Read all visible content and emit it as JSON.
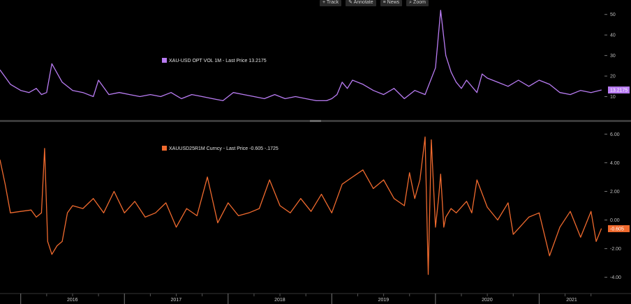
{
  "toolbar": {
    "items": [
      {
        "icon": "plus-icon",
        "glyph": "+",
        "label": "Track"
      },
      {
        "icon": "pencil-icon",
        "glyph": "✎",
        "label": "Annotate"
      },
      {
        "icon": "news-icon",
        "glyph": "≡",
        "label": "News"
      },
      {
        "icon": "magnifier-icon",
        "glyph": "⌕",
        "label": "Zoom"
      }
    ]
  },
  "chart_data": [
    {
      "type": "line",
      "legend": "XAU-USD OPT VOL 1M  -  Last Price 13.2175",
      "last_label": "13.2175",
      "last_value": 13.2175,
      "color": "#b97cf3",
      "ylim": [
        0,
        55
      ],
      "yticks": [
        10,
        20,
        30,
        40,
        50
      ],
      "ytick_labels": [
        "10",
        "20",
        "30",
        "40",
        "50"
      ],
      "x_range": [
        2015.8,
        2021.63
      ],
      "x": [
        2015.8,
        2015.9,
        2016.0,
        2016.08,
        2016.15,
        2016.2,
        2016.25,
        2016.3,
        2016.4,
        2016.5,
        2016.6,
        2016.7,
        2016.75,
        2016.85,
        2016.95,
        2017.05,
        2017.15,
        2017.25,
        2017.35,
        2017.45,
        2017.55,
        2017.65,
        2017.75,
        2017.85,
        2017.95,
        2018.05,
        2018.15,
        2018.25,
        2018.35,
        2018.45,
        2018.55,
        2018.65,
        2018.75,
        2018.85,
        2018.95,
        2019.0,
        2019.05,
        2019.1,
        2019.15,
        2019.2,
        2019.3,
        2019.4,
        2019.5,
        2019.6,
        2019.7,
        2019.8,
        2019.9,
        2020.0,
        2020.05,
        2020.1,
        2020.15,
        2020.17,
        2020.2,
        2020.25,
        2020.3,
        2020.4,
        2020.45,
        2020.5,
        2020.6,
        2020.7,
        2020.8,
        2020.9,
        2021.0,
        2021.1,
        2021.2,
        2021.3,
        2021.4,
        2021.5,
        2021.6
      ],
      "y": [
        23,
        16,
        13,
        12,
        14,
        11,
        12,
        26,
        17,
        13,
        12,
        10,
        18,
        11,
        12,
        11,
        10,
        11,
        10,
        12,
        9,
        11,
        10,
        9,
        8,
        12,
        11,
        10,
        9,
        11,
        9,
        10,
        9,
        8,
        8,
        9,
        11,
        17,
        14,
        18,
        16,
        13,
        11,
        14,
        9,
        13,
        11,
        24,
        52,
        30,
        22,
        20,
        17,
        14,
        18,
        12,
        21,
        19,
        17,
        15,
        18,
        15,
        18,
        16,
        12,
        11,
        13,
        12,
        13.2175
      ]
    },
    {
      "type": "line",
      "legend": "XAUUSD25R1M Curncy  -  Last Price -0.605   -.1725",
      "last_label": "-0.605",
      "last_value": -0.605,
      "color": "#f06a2e",
      "ylim": [
        -4.6,
        6.6
      ],
      "yticks": [
        -4,
        -2,
        0,
        2,
        4,
        6
      ],
      "ytick_labels": [
        "-4.00",
        "-2.00",
        "0.00",
        "2.00",
        "4.00",
        "6.00"
      ],
      "x_range": [
        2015.8,
        2021.63
      ],
      "x": [
        2015.8,
        2015.85,
        2015.9,
        2016.0,
        2016.1,
        2016.15,
        2016.2,
        2016.23,
        2016.26,
        2016.3,
        2016.35,
        2016.4,
        2016.45,
        2016.5,
        2016.6,
        2016.7,
        2016.8,
        2016.9,
        2017.0,
        2017.1,
        2017.2,
        2017.3,
        2017.4,
        2017.5,
        2017.6,
        2017.7,
        2017.8,
        2017.9,
        2018.0,
        2018.1,
        2018.2,
        2018.3,
        2018.4,
        2018.5,
        2018.6,
        2018.7,
        2018.8,
        2018.9,
        2019.0,
        2019.1,
        2019.2,
        2019.3,
        2019.4,
        2019.5,
        2019.6,
        2019.7,
        2019.75,
        2019.8,
        2019.85,
        2019.9,
        2019.93,
        2019.96,
        2020.0,
        2020.03,
        2020.05,
        2020.08,
        2020.1,
        2020.15,
        2020.2,
        2020.3,
        2020.35,
        2020.4,
        2020.5,
        2020.6,
        2020.7,
        2020.75,
        2020.8,
        2020.9,
        2021.0,
        2021.1,
        2021.2,
        2021.3,
        2021.4,
        2021.5,
        2021.55,
        2021.6
      ],
      "y": [
        4.2,
        2.5,
        0.5,
        0.6,
        0.7,
        0.2,
        0.5,
        5.0,
        -1.5,
        -2.4,
        -1.8,
        -1.5,
        0.5,
        1.0,
        0.8,
        1.5,
        0.5,
        2.0,
        0.5,
        1.3,
        0.2,
        0.5,
        1.2,
        -0.5,
        0.8,
        0.3,
        3.0,
        -0.2,
        1.2,
        0.3,
        0.5,
        0.8,
        2.8,
        1.0,
        0.5,
        1.5,
        0.6,
        1.8,
        0.5,
        2.5,
        3.0,
        3.5,
        2.2,
        2.8,
        1.5,
        1.0,
        3.3,
        1.5,
        2.8,
        5.8,
        -3.8,
        5.6,
        -0.5,
        1.5,
        3.2,
        -0.5,
        0.2,
        0.8,
        0.5,
        1.3,
        0.5,
        2.8,
        0.9,
        0.0,
        1.2,
        -1.0,
        -0.6,
        0.2,
        0.5,
        -2.5,
        -0.5,
        0.6,
        -1.2,
        0.6,
        -1.5,
        -0.605
      ]
    }
  ],
  "x_axis": {
    "years": [
      {
        "label": "2016",
        "x": 2016.0
      },
      {
        "label": "2017",
        "x": 2017.0
      },
      {
        "label": "2018",
        "x": 2018.0
      },
      {
        "label": "2019",
        "x": 2019.0
      },
      {
        "label": "2020",
        "x": 2020.0
      },
      {
        "label": "2021",
        "x": 2021.0
      }
    ],
    "month_markers": [
      2016.25,
      2016.5,
      2016.75,
      2017.25,
      2017.5,
      2017.75,
      2018.25,
      2018.5,
      2018.75,
      2019.25,
      2019.5,
      2019.75,
      2020.25,
      2020.5,
      2020.75,
      2021.25,
      2021.5
    ]
  }
}
